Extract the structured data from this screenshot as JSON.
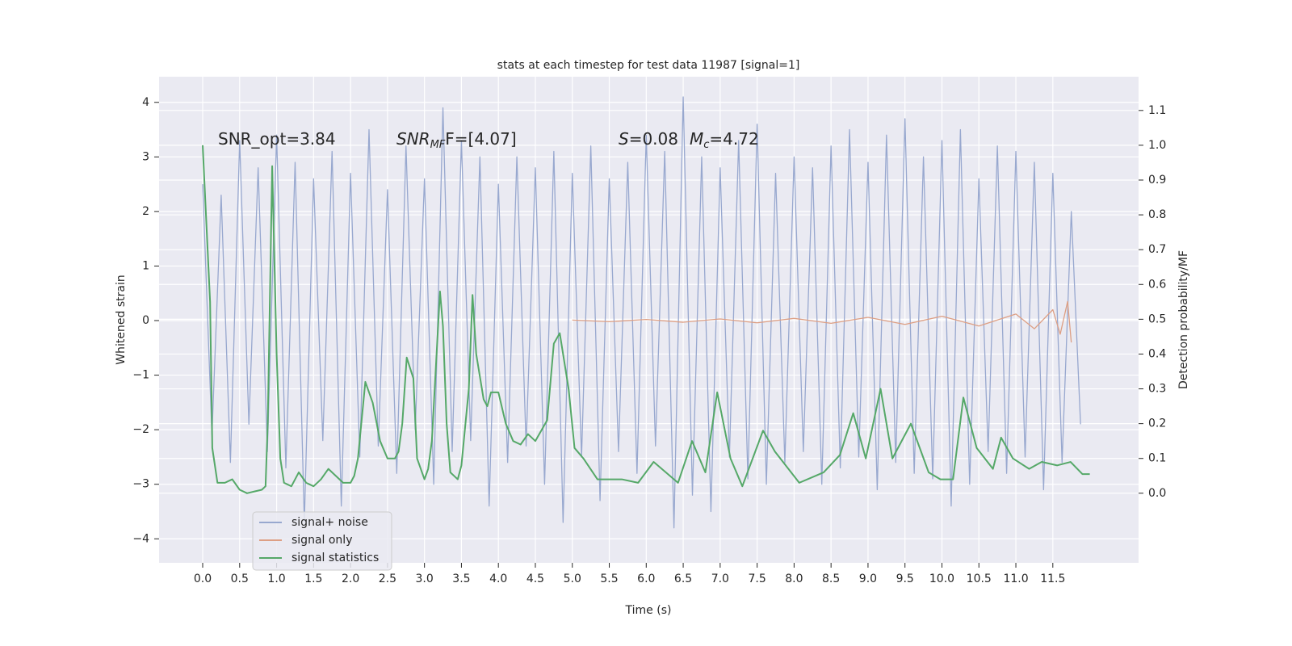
{
  "chart_data": {
    "type": "line",
    "title": "stats at each timestep for test data 11987 [signal=1]",
    "xlabel": "Time (s)",
    "ylabel": "Whitened strain",
    "y2label": "Detection probability/MF",
    "annotations": [
      [
        {
          "text": "SNR_opt=3.84",
          "italic": false,
          "sub": false
        }
      ],
      [
        {
          "text": "SNR",
          "italic": true,
          "sub": false
        },
        {
          "text": "MF",
          "italic": true,
          "sub": true
        },
        {
          "text": "F=[4.07]",
          "italic": false,
          "sub": false
        }
      ],
      [
        {
          "text": "S",
          "italic": true,
          "sub": false
        },
        {
          "text": "=0.08",
          "italic": false,
          "sub": false
        },
        {
          "text": "M",
          "italic": true,
          "sub": false
        },
        {
          "text": "c",
          "italic": true,
          "sub": true
        },
        {
          "text": "=4.72",
          "italic": false,
          "sub": false
        }
      ]
    ],
    "xlim": [
      -0.59,
      12.66
    ],
    "ylim": [
      -4.44,
      4.47
    ],
    "y2lim": [
      -0.2,
      1.197
    ],
    "xticks": [
      {
        "value": 0,
        "label": "0.0"
      },
      0.5,
      {
        "value": 1,
        "label": "1.0"
      },
      1.5,
      {
        "value": 2,
        "label": "2.0"
      },
      2.5,
      {
        "value": 3,
        "label": "3.0"
      },
      3.5,
      {
        "value": 4,
        "label": "4.0"
      },
      4.5,
      {
        "value": 5,
        "label": "5.0"
      },
      5.5,
      {
        "value": 6,
        "label": "6.0"
      },
      6.5,
      {
        "value": 7,
        "label": "7.0"
      },
      7.5,
      {
        "value": 8,
        "label": "8.0"
      },
      8.5,
      {
        "value": 9,
        "label": "9.0"
      },
      9.5,
      {
        "value": 10,
        "label": "10.0"
      },
      10.5,
      {
        "value": 11,
        "label": "11.0"
      },
      11.5
    ],
    "yticks": [
      {
        "value": -4,
        "label": "−4"
      },
      {
        "value": -3,
        "label": "−3"
      },
      {
        "value": -2,
        "label": "−2"
      },
      {
        "value": -1,
        "label": "−1"
      },
      0,
      1,
      2,
      3,
      4
    ],
    "y2ticks": [
      {
        "value": 0,
        "label": "0.0"
      },
      0.1,
      0.2,
      0.3,
      0.4,
      0.5,
      0.6,
      0.7,
      0.8,
      0.9,
      {
        "value": 1,
        "label": "1.0"
      },
      1.1
    ],
    "grid": true,
    "legend": "lower left",
    "series": [
      {
        "name": "signal+ noise",
        "color": "#98a8cf",
        "axis": "y",
        "x": [
          0,
          0.125,
          0.25,
          0.375,
          0.5,
          0.625,
          0.75,
          0.875,
          1,
          1.125,
          1.25,
          1.375,
          1.5,
          1.625,
          1.75,
          1.875,
          2,
          2.125,
          2.25,
          2.375,
          2.5,
          2.625,
          2.75,
          2.875,
          3,
          3.125,
          3.25,
          3.375,
          3.5,
          3.625,
          3.75,
          3.875,
          4,
          4.125,
          4.25,
          4.375,
          4.5,
          4.625,
          4.75,
          4.875,
          5,
          5.125,
          5.25,
          5.375,
          5.5,
          5.625,
          5.75,
          5.875,
          6,
          6.125,
          6.25,
          6.375,
          6.5,
          6.625,
          6.75,
          6.875,
          7,
          7.125,
          7.25,
          7.375,
          7.5,
          7.625,
          7.75,
          7.875,
          8,
          8.125,
          8.25,
          8.375,
          8.5,
          8.625,
          8.75,
          8.875,
          9,
          9.125,
          9.25,
          9.375,
          9.5,
          9.625,
          9.75,
          9.875,
          10,
          10.125,
          10.25,
          10.375,
          10.5,
          10.625,
          10.75,
          10.875,
          11,
          11.125,
          11.25,
          11.375,
          11.5,
          11.625,
          11.75,
          11.875
        ],
        "values": [
          2.5,
          -2.1,
          2.3,
          -2.6,
          3.3,
          -1.9,
          2.8,
          -2.4,
          3.4,
          -2.7,
          2.9,
          -3.7,
          2.6,
          -2.2,
          3.1,
          -3.4,
          2.7,
          -2.5,
          3.5,
          -2.3,
          2.4,
          -2.8,
          3.2,
          -2.0,
          2.6,
          -3.0,
          3.9,
          -2.4,
          3.3,
          -2.2,
          3.0,
          -3.4,
          2.5,
          -2.6,
          3.0,
          -2.3,
          2.8,
          -3.0,
          3.1,
          -3.7,
          2.7,
          -2.5,
          3.2,
          -3.3,
          2.6,
          -2.4,
          2.9,
          -2.8,
          3.4,
          -2.3,
          3.1,
          -3.8,
          4.1,
          -3.2,
          3.0,
          -3.5,
          2.8,
          -2.5,
          3.3,
          -2.9,
          3.6,
          -3.0,
          2.7,
          -2.6,
          3.0,
          -2.4,
          2.8,
          -3.0,
          3.2,
          -2.7,
          3.5,
          -2.5,
          2.9,
          -3.1,
          3.4,
          -2.6,
          3.7,
          -2.8,
          3.0,
          -2.9,
          3.3,
          -3.4,
          3.5,
          -3.0,
          2.6,
          -2.4,
          3.2,
          -2.8,
          3.1,
          -2.5,
          2.9,
          -3.1,
          2.7,
          -2.6,
          2.0,
          -1.9
        ]
      },
      {
        "name": "signal only",
        "color": "#dd9f84",
        "axis": "y",
        "x": [
          5.0,
          5.5,
          6.0,
          6.5,
          7.0,
          7.5,
          8.0,
          8.5,
          9.0,
          9.5,
          10.0,
          10.5,
          11.0,
          11.25,
          11.5,
          11.6,
          11.7,
          11.75
        ],
        "values": [
          0.01,
          -0.02,
          0.02,
          -0.03,
          0.03,
          -0.04,
          0.04,
          -0.05,
          0.06,
          -0.07,
          0.08,
          -0.1,
          0.12,
          -0.15,
          0.2,
          -0.25,
          0.35,
          -0.4
        ]
      },
      {
        "name": "signal statistics",
        "color": "#55a868",
        "axis": "y2",
        "x": [
          0,
          0.1,
          0.13,
          0.2,
          0.3,
          0.4,
          0.5,
          0.6,
          0.7,
          0.8,
          0.85,
          0.88,
          0.94,
          1.0,
          1.05,
          1.1,
          1.2,
          1.3,
          1.4,
          1.5,
          1.6,
          1.7,
          1.8,
          1.9,
          2.0,
          2.05,
          2.1,
          2.2,
          2.3,
          2.4,
          2.5,
          2.6,
          2.65,
          2.7,
          2.76,
          2.85,
          2.9,
          3.0,
          3.05,
          3.1,
          3.21,
          3.25,
          3.3,
          3.35,
          3.45,
          3.5,
          3.6,
          3.65,
          3.7,
          3.8,
          3.85,
          3.9,
          4.0,
          4.1,
          4.2,
          4.3,
          4.4,
          4.5,
          4.66,
          4.75,
          4.83,
          4.95,
          5.03,
          5.15,
          5.34,
          5.67,
          5.89,
          6.1,
          6.32,
          6.43,
          6.62,
          6.8,
          6.96,
          7.14,
          7.3,
          7.58,
          7.74,
          8.07,
          8.4,
          8.62,
          8.8,
          8.97,
          9.17,
          9.33,
          9.58,
          9.82,
          9.98,
          10.15,
          10.29,
          10.47,
          10.69,
          10.8,
          10.96,
          11.18,
          11.35,
          11.56,
          11.74,
          11.9,
          12.0
        ],
        "values": [
          1.0,
          0.55,
          0.13,
          0.03,
          0.03,
          0.04,
          0.01,
          0.0,
          0.005,
          0.01,
          0.02,
          0.2,
          0.94,
          0.4,
          0.1,
          0.03,
          0.02,
          0.06,
          0.03,
          0.02,
          0.04,
          0.07,
          0.05,
          0.03,
          0.03,
          0.05,
          0.1,
          0.32,
          0.26,
          0.15,
          0.1,
          0.1,
          0.12,
          0.2,
          0.39,
          0.33,
          0.1,
          0.04,
          0.07,
          0.15,
          0.58,
          0.48,
          0.2,
          0.06,
          0.04,
          0.08,
          0.3,
          0.57,
          0.4,
          0.27,
          0.25,
          0.29,
          0.29,
          0.2,
          0.15,
          0.14,
          0.17,
          0.15,
          0.21,
          0.43,
          0.46,
          0.3,
          0.13,
          0.1,
          0.04,
          0.04,
          0.03,
          0.09,
          0.05,
          0.03,
          0.15,
          0.06,
          0.29,
          0.1,
          0.02,
          0.18,
          0.12,
          0.03,
          0.06,
          0.11,
          0.23,
          0.1,
          0.3,
          0.1,
          0.2,
          0.06,
          0.04,
          0.04,
          0.275,
          0.13,
          0.07,
          0.16,
          0.1,
          0.07,
          0.09,
          0.08,
          0.09,
          0.055,
          0.055
        ]
      }
    ]
  }
}
